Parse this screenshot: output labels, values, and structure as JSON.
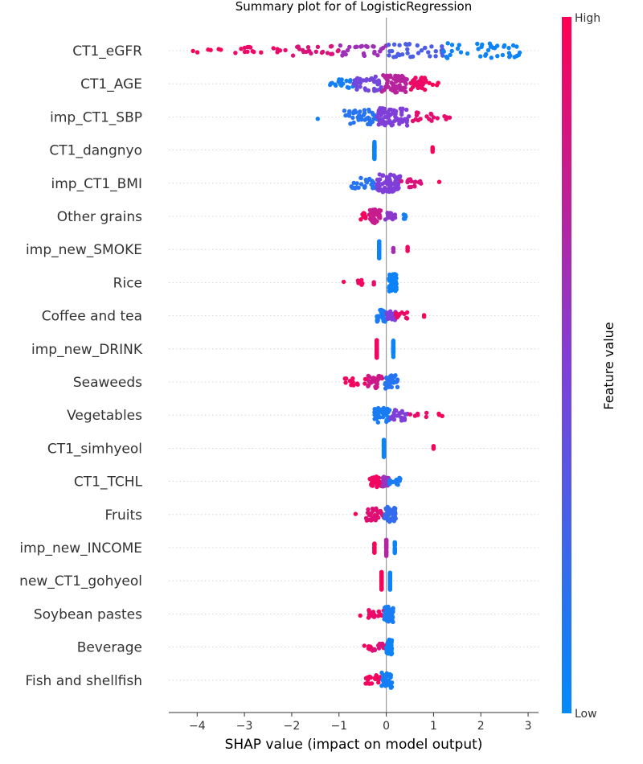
{
  "chart_data": {
    "type": "scatter",
    "title": "Summary plot for of LogisticRegression",
    "xlabel": "SHAP value (impact on model output)",
    "xlim": [
      -4.6,
      3.22
    ],
    "xticks": [
      -4,
      -3,
      -2,
      -1,
      0,
      1,
      2,
      3
    ],
    "xtick_labels": [
      "−4",
      "−3",
      "−2",
      "−1",
      "0",
      "1",
      "2",
      "3"
    ],
    "grid": false,
    "colorbar": {
      "title": "Feature value",
      "high_label": "High",
      "low_label": "Low",
      "low_color": "#008bfb",
      "mid_color": "#7f3fd8",
      "high_color": "#ff0052"
    },
    "features": [
      {
        "name": "CT1_eGFR",
        "groups": [
          {
            "x_min": -4.25,
            "x_max": -3.2,
            "n": 6,
            "feature_value": 0.97
          },
          {
            "x_min": -3.2,
            "x_max": -2.0,
            "n": 16,
            "feature_value": 0.92
          },
          {
            "x_min": -2.0,
            "x_max": -1.0,
            "n": 22,
            "feature_value": 0.85
          },
          {
            "x_min": -1.0,
            "x_max": 0.0,
            "n": 26,
            "feature_value": 0.62
          },
          {
            "x_min": 0.0,
            "x_max": 1.2,
            "n": 34,
            "feature_value": 0.3
          },
          {
            "x_min": 1.2,
            "x_max": 2.85,
            "n": 40,
            "feature_value": 0.05
          }
        ]
      },
      {
        "name": "CT1_AGE",
        "groups": [
          {
            "x_min": -1.2,
            "x_max": -0.7,
            "n": 18,
            "feature_value": 0.08
          },
          {
            "x_min": -0.7,
            "x_max": -0.1,
            "n": 38,
            "feature_value": 0.45
          },
          {
            "x_min": -0.1,
            "x_max": 0.45,
            "n": 60,
            "feature_value": 0.72
          },
          {
            "x_min": 0.45,
            "x_max": 0.85,
            "n": 30,
            "feature_value": 0.93
          },
          {
            "x_min": 0.9,
            "x_max": 1.12,
            "n": 4,
            "feature_value": 0.98
          }
        ]
      },
      {
        "name": "imp_CT1_SBP",
        "groups": [
          {
            "x_min": -1.45,
            "x_max": -1.45,
            "n": 1,
            "feature_value": 0.05
          },
          {
            "x_min": -0.9,
            "x_max": -0.2,
            "n": 40,
            "feature_value": 0.15
          },
          {
            "x_min": -0.2,
            "x_max": 0.5,
            "n": 70,
            "feature_value": 0.5
          },
          {
            "x_min": 0.5,
            "x_max": 1.35,
            "n": 18,
            "feature_value": 0.9
          }
        ]
      },
      {
        "name": "CT1_dangnyo",
        "groups": [
          {
            "x_min": -0.25,
            "x_max": -0.25,
            "n": 60,
            "feature_value": 0.05
          },
          {
            "x_min": 0.98,
            "x_max": 0.98,
            "n": 8,
            "feature_value": 0.97
          }
        ]
      },
      {
        "name": "imp_CT1_BMI",
        "groups": [
          {
            "x_min": -0.75,
            "x_max": -0.2,
            "n": 25,
            "feature_value": 0.15
          },
          {
            "x_min": -0.2,
            "x_max": 0.3,
            "n": 70,
            "feature_value": 0.5
          },
          {
            "x_min": 0.3,
            "x_max": 0.75,
            "n": 18,
            "feature_value": 0.85
          },
          {
            "x_min": 1.12,
            "x_max": 1.12,
            "n": 1,
            "feature_value": 0.98
          }
        ]
      },
      {
        "name": "Other grains",
        "groups": [
          {
            "x_min": -0.55,
            "x_max": -0.35,
            "n": 12,
            "feature_value": 0.95
          },
          {
            "x_min": -0.35,
            "x_max": -0.1,
            "n": 35,
            "feature_value": 0.78
          },
          {
            "x_min": -0.05,
            "x_max": 0.2,
            "n": 15,
            "feature_value": 0.55
          },
          {
            "x_min": 0.35,
            "x_max": 0.42,
            "n": 8,
            "feature_value": 0.08
          }
        ]
      },
      {
        "name": "imp_new_SMOKE",
        "groups": [
          {
            "x_min": -0.15,
            "x_max": -0.15,
            "n": 60,
            "feature_value": 0.05
          },
          {
            "x_min": 0.15,
            "x_max": 0.15,
            "n": 6,
            "feature_value": 0.65
          },
          {
            "x_min": 0.45,
            "x_max": 0.45,
            "n": 8,
            "feature_value": 0.95
          }
        ]
      },
      {
        "name": "Rice",
        "groups": [
          {
            "x_min": -0.9,
            "x_max": -0.9,
            "n": 1,
            "feature_value": 0.97
          },
          {
            "x_min": -0.6,
            "x_max": -0.5,
            "n": 8,
            "feature_value": 0.95
          },
          {
            "x_min": -0.3,
            "x_max": -0.25,
            "n": 3,
            "feature_value": 0.92
          },
          {
            "x_min": 0.05,
            "x_max": 0.22,
            "n": 50,
            "feature_value": 0.05
          }
        ]
      },
      {
        "name": "Coffee and tea",
        "groups": [
          {
            "x_min": -0.2,
            "x_max": 0.0,
            "n": 30,
            "feature_value": 0.1
          },
          {
            "x_min": 0.0,
            "x_max": 0.2,
            "n": 18,
            "feature_value": 0.5
          },
          {
            "x_min": 0.2,
            "x_max": 0.45,
            "n": 12,
            "feature_value": 0.92
          },
          {
            "x_min": 0.8,
            "x_max": 0.8,
            "n": 2,
            "feature_value": 0.97
          }
        ]
      },
      {
        "name": "imp_new_DRINK",
        "groups": [
          {
            "x_min": -0.2,
            "x_max": -0.2,
            "n": 50,
            "feature_value": 0.95
          },
          {
            "x_min": 0.15,
            "x_max": 0.15,
            "n": 45,
            "feature_value": 0.05
          }
        ]
      },
      {
        "name": "Seaweeds",
        "groups": [
          {
            "x_min": -0.9,
            "x_max": -0.4,
            "n": 14,
            "feature_value": 0.95
          },
          {
            "x_min": -0.4,
            "x_max": -0.05,
            "n": 30,
            "feature_value": 0.8
          },
          {
            "x_min": -0.05,
            "x_max": 0.25,
            "n": 35,
            "feature_value": 0.15
          }
        ]
      },
      {
        "name": "Vegetables",
        "groups": [
          {
            "x_min": -0.25,
            "x_max": 0.1,
            "n": 40,
            "feature_value": 0.1
          },
          {
            "x_min": 0.1,
            "x_max": 0.45,
            "n": 25,
            "feature_value": 0.5
          },
          {
            "x_min": 0.5,
            "x_max": 0.9,
            "n": 6,
            "feature_value": 0.92
          },
          {
            "x_min": 1.1,
            "x_max": 1.28,
            "n": 3,
            "feature_value": 0.97
          }
        ]
      },
      {
        "name": "CT1_simhyeol",
        "groups": [
          {
            "x_min": -0.05,
            "x_max": -0.05,
            "n": 70,
            "feature_value": 0.05
          },
          {
            "x_min": 1.0,
            "x_max": 1.0,
            "n": 4,
            "feature_value": 0.97
          }
        ]
      },
      {
        "name": "CT1_TCHL",
        "groups": [
          {
            "x_min": -0.35,
            "x_max": -0.1,
            "n": 30,
            "feature_value": 0.95
          },
          {
            "x_min": -0.1,
            "x_max": 0.05,
            "n": 25,
            "feature_value": 0.6
          },
          {
            "x_min": 0.05,
            "x_max": 0.3,
            "n": 15,
            "feature_value": 0.1
          }
        ]
      },
      {
        "name": "Fruits",
        "groups": [
          {
            "x_min": -0.65,
            "x_max": -0.65,
            "n": 1,
            "feature_value": 0.97
          },
          {
            "x_min": -0.45,
            "x_max": -0.05,
            "n": 30,
            "feature_value": 0.88
          },
          {
            "x_min": -0.05,
            "x_max": 0.2,
            "n": 40,
            "feature_value": 0.2
          }
        ]
      },
      {
        "name": "imp_new_INCOME",
        "groups": [
          {
            "x_min": -0.25,
            "x_max": -0.25,
            "n": 25,
            "feature_value": 0.97
          },
          {
            "x_min": 0.0,
            "x_max": 0.0,
            "n": 45,
            "feature_value": 0.7
          },
          {
            "x_min": 0.18,
            "x_max": 0.18,
            "n": 25,
            "feature_value": 0.05
          }
        ]
      },
      {
        "name": "new_CT1_gohyeol",
        "groups": [
          {
            "x_min": -0.1,
            "x_max": -0.1,
            "n": 50,
            "feature_value": 0.97
          },
          {
            "x_min": 0.08,
            "x_max": 0.08,
            "n": 50,
            "feature_value": 0.05
          }
        ]
      },
      {
        "name": "Soybean pastes",
        "groups": [
          {
            "x_min": -0.55,
            "x_max": -0.55,
            "n": 1,
            "feature_value": 0.97
          },
          {
            "x_min": -0.4,
            "x_max": -0.05,
            "n": 18,
            "feature_value": 0.92
          },
          {
            "x_min": -0.05,
            "x_max": 0.15,
            "n": 45,
            "feature_value": 0.1
          }
        ]
      },
      {
        "name": "Beverage",
        "groups": [
          {
            "x_min": -0.5,
            "x_max": -0.3,
            "n": 6,
            "feature_value": 0.95
          },
          {
            "x_min": -0.3,
            "x_max": 0.0,
            "n": 14,
            "feature_value": 0.85
          },
          {
            "x_min": 0.0,
            "x_max": 0.12,
            "n": 40,
            "feature_value": 0.05
          }
        ]
      },
      {
        "name": "Fish and shellfish",
        "groups": [
          {
            "x_min": -0.45,
            "x_max": -0.1,
            "n": 22,
            "feature_value": 0.95
          },
          {
            "x_min": -0.1,
            "x_max": 0.12,
            "n": 45,
            "feature_value": 0.08
          }
        ]
      }
    ]
  }
}
